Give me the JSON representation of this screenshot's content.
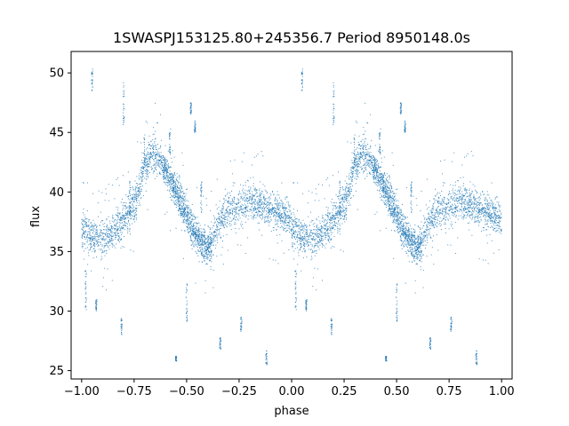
{
  "chart_data": {
    "type": "scatter",
    "title": "1SWASPJ153125.80+245356.7 Period 8950148.0s",
    "xlabel": "phase",
    "ylabel": "flux",
    "xlim": [
      -1.05,
      1.05
    ],
    "ylim": [
      24.3,
      51.8
    ],
    "xticks": [
      -1.0,
      -0.75,
      -0.5,
      -0.25,
      0.0,
      0.25,
      0.5,
      0.75,
      1.0
    ],
    "xtick_labels": [
      "−1.00",
      "−0.75",
      "−0.50",
      "−0.25",
      "0.00",
      "0.25",
      "0.50",
      "0.75",
      "1.00"
    ],
    "yticks": [
      25,
      30,
      35,
      40,
      45,
      50
    ],
    "ytick_labels": [
      "25",
      "30",
      "35",
      "40",
      "45",
      "50"
    ],
    "grid": false,
    "legend": "none",
    "point_color": "#1f77b4",
    "trend": {
      "phase": [
        0.0,
        0.05,
        0.1,
        0.15,
        0.2,
        0.25,
        0.28,
        0.3,
        0.33,
        0.36,
        0.4,
        0.44,
        0.48,
        0.5,
        0.53,
        0.56,
        0.6,
        0.63,
        0.66,
        0.7,
        0.75,
        0.8,
        0.85,
        0.9,
        0.95,
        1.0
      ],
      "flux": [
        37.0,
        36.2,
        36.0,
        36.5,
        37.5,
        39.0,
        40.5,
        42.0,
        43.3,
        43.0,
        42.0,
        40.5,
        39.0,
        38.0,
        37.0,
        36.0,
        35.5,
        36.5,
        37.5,
        38.5,
        38.8,
        39.3,
        39.0,
        38.6,
        38.3,
        37.5
      ]
    },
    "secondary_trend": {
      "phase": [
        0.38,
        0.42,
        0.46,
        0.5,
        0.54,
        0.58,
        0.62
      ],
      "flux": [
        42.5,
        41.0,
        39.5,
        38.0,
        36.5,
        35.5,
        35.0
      ]
    },
    "outlier_clusters": [
      {
        "phase": 0.05,
        "flux": [
          48.5,
          50.5
        ]
      },
      {
        "phase": 0.52,
        "flux": [
          46.5,
          47.5
        ]
      },
      {
        "phase": 0.54,
        "flux": [
          45.0,
          46.0
        ]
      },
      {
        "phase": 0.76,
        "flux": [
          28.3,
          29.5
        ]
      },
      {
        "phase": 0.5,
        "flux": [
          29.0,
          33.0
        ]
      },
      {
        "phase": 0.02,
        "flux": [
          30.0,
          33.5
        ]
      },
      {
        "phase": 0.07,
        "flux": [
          30.0,
          31.0
        ]
      },
      {
        "phase": 0.45,
        "flux": [
          25.8,
          26.2
        ]
      },
      {
        "phase": 0.88,
        "flux": [
          25.5,
          26.8
        ]
      },
      {
        "phase": 0.66,
        "flux": [
          26.8,
          27.8
        ]
      },
      {
        "phase": 0.3,
        "flux": [
          42.0,
          45.0
        ]
      },
      {
        "phase": 0.42,
        "flux": [
          43.0,
          45.0
        ]
      },
      {
        "phase": 0.19,
        "flux": [
          28.0,
          29.5
        ]
      },
      {
        "phase": 0.2,
        "flux": [
          45.5,
          49.5
        ]
      },
      {
        "phase": 0.23,
        "flux": [
          38.0,
          41.0
        ]
      },
      {
        "phase": 0.57,
        "flux": [
          38.0,
          41.0
        ]
      }
    ]
  }
}
